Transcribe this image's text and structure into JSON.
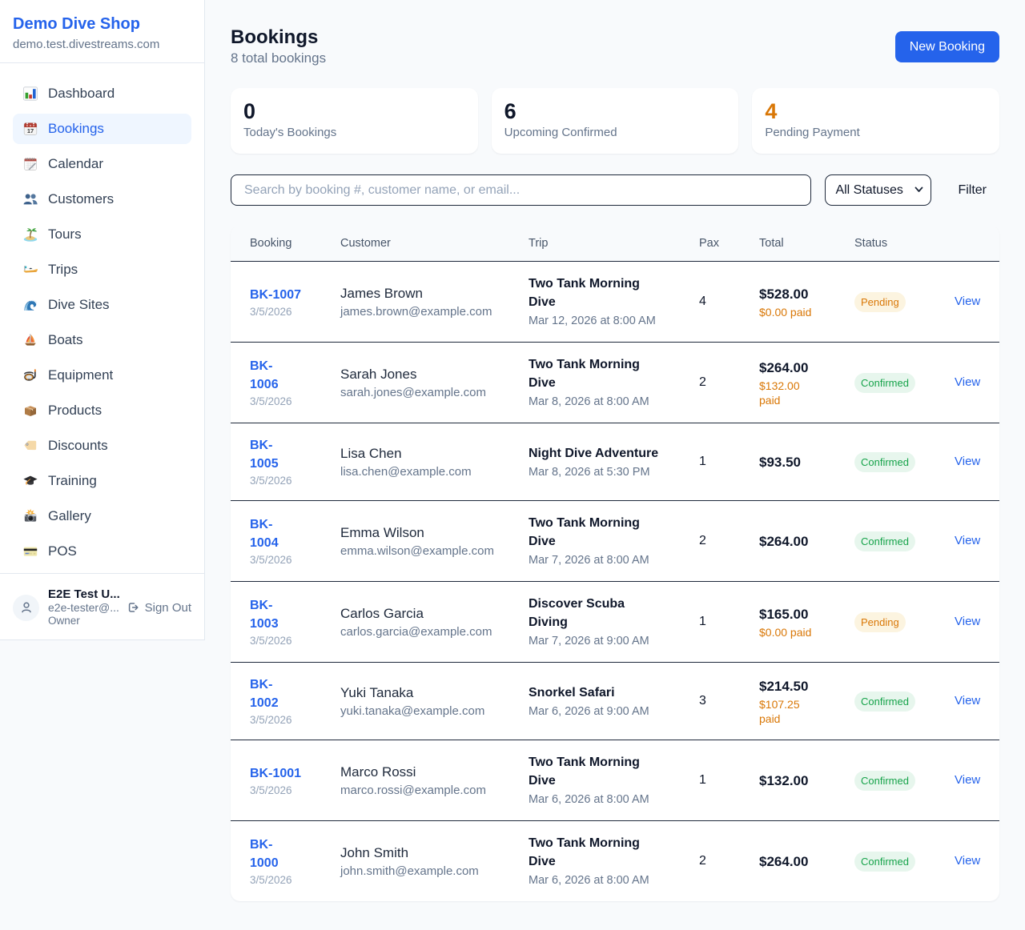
{
  "sidebar": {
    "brand": {
      "name": "Demo Dive Shop",
      "domain": "demo.test.divestreams.com"
    },
    "nav": [
      {
        "label": "Dashboard",
        "icon": "bar-chart",
        "active": false
      },
      {
        "label": "Bookings",
        "icon": "calendar-17",
        "active": true
      },
      {
        "label": "Calendar",
        "icon": "calendar-pad",
        "active": false
      },
      {
        "label": "Customers",
        "icon": "people",
        "active": false
      },
      {
        "label": "Tours",
        "icon": "island",
        "active": false
      },
      {
        "label": "Trips",
        "icon": "speedboat",
        "active": false
      },
      {
        "label": "Dive Sites",
        "icon": "wave",
        "active": false
      },
      {
        "label": "Boats",
        "icon": "sailboat",
        "active": false
      },
      {
        "label": "Equipment",
        "icon": "diving-mask",
        "active": false
      },
      {
        "label": "Products",
        "icon": "package",
        "active": false
      },
      {
        "label": "Discounts",
        "icon": "label-tag",
        "active": false
      },
      {
        "label": "Training",
        "icon": "graduation-cap",
        "active": false
      },
      {
        "label": "Gallery",
        "icon": "camera-flash",
        "active": false
      },
      {
        "label": "POS",
        "icon": "credit-card",
        "active": false
      }
    ],
    "user": {
      "name": "E2E Test U...",
      "email": "e2e-tester@...",
      "role": "Owner",
      "signout_label": "Sign Out"
    }
  },
  "header": {
    "title": "Bookings",
    "subtitle": "8 total bookings",
    "new_booking_label": "New Booking"
  },
  "stats": [
    {
      "value": "0",
      "label": "Today's Bookings",
      "accent": "dark"
    },
    {
      "value": "6",
      "label": "Upcoming Confirmed",
      "accent": "dark"
    },
    {
      "value": "4",
      "label": "Pending Payment",
      "accent": "orange"
    }
  ],
  "filters": {
    "search_placeholder": "Search by booking #, customer name, or email...",
    "status_selected": "All Statuses",
    "filter_label": "Filter"
  },
  "table": {
    "columns": [
      "Booking",
      "Customer",
      "Trip",
      "Pax",
      "Total",
      "Status",
      ""
    ],
    "rows": [
      {
        "id_display": "BK-1007",
        "date": "3/5/2026",
        "customer": "James Brown",
        "email": "james.brown@example.com",
        "trip": "Two Tank Morning\nDive",
        "trip_datetime": "Mar 12, 2026 at 8:00 AM",
        "pax": "4",
        "total": "$528.00",
        "paid": "$0.00 paid",
        "status": "Pending",
        "action": "View"
      },
      {
        "id_display": "BK-\n1006",
        "date": "3/5/2026",
        "customer": "Sarah Jones",
        "email": "sarah.jones@example.com",
        "trip": "Two Tank Morning\nDive",
        "trip_datetime": "Mar 8, 2026 at 8:00 AM",
        "pax": "2",
        "total": "$264.00",
        "paid": "$132.00\npaid",
        "status": "Confirmed",
        "action": "View"
      },
      {
        "id_display": "BK-\n1005",
        "date": "3/5/2026",
        "customer": "Lisa Chen",
        "email": "lisa.chen@example.com",
        "trip": "Night Dive Adventure",
        "trip_datetime": "Mar 8, 2026 at 5:30 PM",
        "pax": "1",
        "total": "$93.50",
        "paid": null,
        "status": "Confirmed",
        "action": "View"
      },
      {
        "id_display": "BK-\n1004",
        "date": "3/5/2026",
        "customer": "Emma Wilson",
        "email": "emma.wilson@example.com",
        "trip": "Two Tank Morning\nDive",
        "trip_datetime": "Mar 7, 2026 at 8:00 AM",
        "pax": "2",
        "total": "$264.00",
        "paid": null,
        "status": "Confirmed",
        "action": "View"
      },
      {
        "id_display": "BK-\n1003",
        "date": "3/5/2026",
        "customer": "Carlos Garcia",
        "email": "carlos.garcia@example.com",
        "trip": "Discover Scuba\nDiving",
        "trip_datetime": "Mar 7, 2026 at 9:00 AM",
        "pax": "1",
        "total": "$165.00",
        "paid": "$0.00 paid",
        "status": "Pending",
        "action": "View"
      },
      {
        "id_display": "BK-\n1002",
        "date": "3/5/2026",
        "customer": "Yuki Tanaka",
        "email": "yuki.tanaka@example.com",
        "trip": "Snorkel Safari",
        "trip_datetime": "Mar 6, 2026 at 9:00 AM",
        "pax": "3",
        "total": "$214.50",
        "paid": "$107.25\npaid",
        "status": "Confirmed",
        "action": "View"
      },
      {
        "id_display": "BK-1001",
        "date": "3/5/2026",
        "customer": "Marco Rossi",
        "email": "marco.rossi@example.com",
        "trip": "Two Tank Morning\nDive",
        "trip_datetime": "Mar 6, 2026 at 8:00 AM",
        "pax": "1",
        "total": "$132.00",
        "paid": null,
        "status": "Confirmed",
        "action": "View"
      },
      {
        "id_display": "BK-\n1000",
        "date": "3/5/2026",
        "customer": "John Smith",
        "email": "john.smith@example.com",
        "trip": "Two Tank Morning\nDive",
        "trip_datetime": "Mar 6, 2026 at 8:00 AM",
        "pax": "2",
        "total": "$264.00",
        "paid": null,
        "status": "Confirmed",
        "action": "View"
      }
    ]
  },
  "colors": {
    "accent_blue": "#2563eb",
    "orange": "#d97706",
    "green": "#16a34a",
    "page_bg": "#f8fafc",
    "border_dark": "#1e293b",
    "border_light": "#e2e8f0"
  }
}
